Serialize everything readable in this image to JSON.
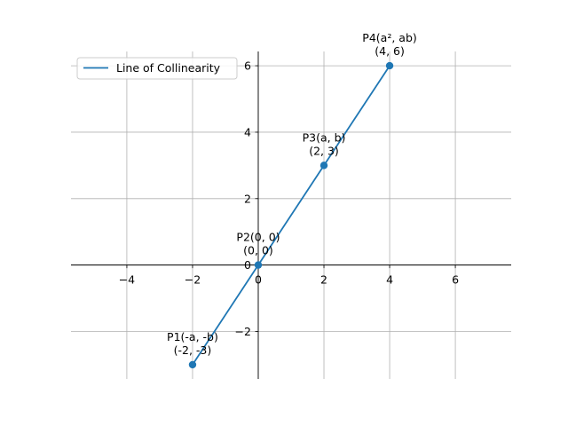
{
  "chart_data": {
    "type": "line",
    "title": "",
    "xlabel": "",
    "ylabel": "",
    "xlim": [
      -5.7,
      7.7
    ],
    "ylim": [
      -3.43,
      6.43
    ],
    "xticks": [
      -4,
      -2,
      0,
      2,
      4,
      6
    ],
    "yticks": [
      -2,
      0,
      2,
      4,
      6
    ],
    "xtick_labels": [
      "−4",
      "−2",
      "0",
      "2",
      "4",
      "6"
    ],
    "ytick_labels": [
      "−2",
      "0",
      "2",
      "4",
      "6"
    ],
    "grid": true,
    "legend_placement": "upper-left",
    "series": [
      {
        "name": "Line of Collinearity",
        "color": "#1f77b4",
        "x": [
          -2,
          0,
          2,
          4
        ],
        "y": [
          -3,
          0,
          3,
          6
        ]
      }
    ],
    "points": [
      {
        "x": -2,
        "y": -3,
        "label": "P1(-a, -b)",
        "coords": "(-2, -3)"
      },
      {
        "x": 0,
        "y": 0,
        "label": "P2(0, 0)",
        "coords": "(0, 0)"
      },
      {
        "x": 2,
        "y": 3,
        "label": "P3(a, b)",
        "coords": "(2, 3)"
      },
      {
        "x": 4,
        "y": 6,
        "label": "P4(a², ab)",
        "coords": "(4, 6)"
      }
    ]
  }
}
